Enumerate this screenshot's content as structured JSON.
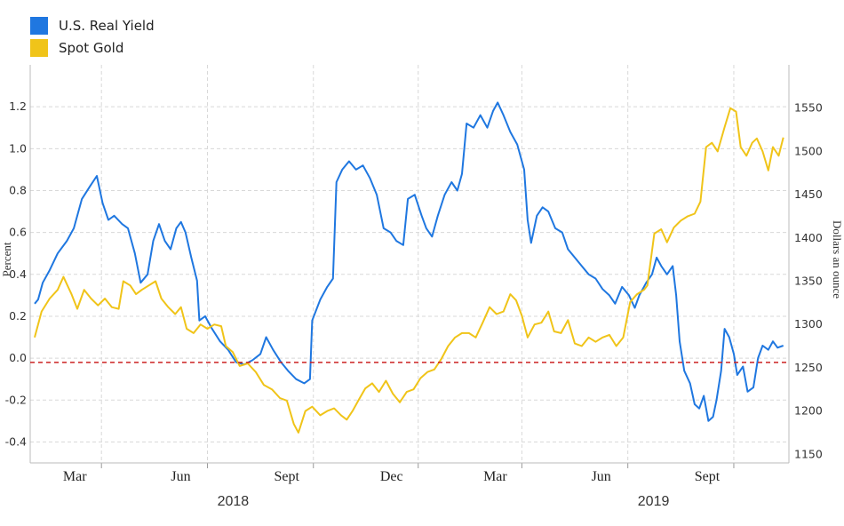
{
  "legend": {
    "items": [
      {
        "label": "U.S. Real Yield",
        "color": "#1f77e0"
      },
      {
        "label": "Spot Gold",
        "color": "#f0c419"
      }
    ]
  },
  "chart_data": {
    "type": "line",
    "left_axis": {
      "label": "Percent",
      "min": -0.5,
      "max": 1.4,
      "ticks": [
        "1.2",
        "1.0",
        "0.8",
        "0.6",
        "0.4",
        "0.2",
        "0.0",
        "-0.2",
        "-0.4"
      ]
    },
    "right_axis": {
      "label": "Dollars an ounce",
      "min": 1140,
      "max": 1600,
      "ticks": [
        "1550",
        "1500",
        "1450",
        "1400",
        "1350",
        "1300",
        "1250",
        "1200",
        "1150"
      ]
    },
    "x_axis": {
      "start": "2018-01-02",
      "end": "2019-10-15",
      "month_labels": [
        {
          "date": "2018-03-01",
          "label": "Mar"
        },
        {
          "date": "2018-06-01",
          "label": "Jun"
        },
        {
          "date": "2018-09-01",
          "label": "Sept"
        },
        {
          "date": "2018-12-01",
          "label": "Dec"
        },
        {
          "date": "2019-03-01",
          "label": "Mar"
        },
        {
          "date": "2019-06-01",
          "label": "Jun"
        },
        {
          "date": "2019-09-01",
          "label": "Sept"
        }
      ],
      "year_labels": [
        {
          "date": "2018-07-01",
          "label": "2018"
        },
        {
          "date": "2019-07-01",
          "label": "2019"
        }
      ]
    },
    "grid": true,
    "reference_line": {
      "value": -0.02,
      "axis": "left",
      "color": "#cc2222",
      "style": "dashed"
    },
    "series": [
      {
        "name": "U.S. Real Yield",
        "axis": "left",
        "color": "#1f77e0",
        "points": [
          [
            "2018-01-02",
            0.26
          ],
          [
            "2018-01-05",
            0.28
          ],
          [
            "2018-01-09",
            0.36
          ],
          [
            "2018-01-15",
            0.42
          ],
          [
            "2018-01-22",
            0.5
          ],
          [
            "2018-01-30",
            0.56
          ],
          [
            "2018-02-05",
            0.62
          ],
          [
            "2018-02-12",
            0.76
          ],
          [
            "2018-02-19",
            0.82
          ],
          [
            "2018-02-25",
            0.87
          ],
          [
            "2018-03-02",
            0.74
          ],
          [
            "2018-03-07",
            0.66
          ],
          [
            "2018-03-12",
            0.68
          ],
          [
            "2018-03-19",
            0.64
          ],
          [
            "2018-03-24",
            0.62
          ],
          [
            "2018-03-30",
            0.5
          ],
          [
            "2018-04-04",
            0.36
          ],
          [
            "2018-04-10",
            0.4
          ],
          [
            "2018-04-15",
            0.56
          ],
          [
            "2018-04-20",
            0.64
          ],
          [
            "2018-04-25",
            0.56
          ],
          [
            "2018-04-30",
            0.52
          ],
          [
            "2018-05-05",
            0.62
          ],
          [
            "2018-05-09",
            0.65
          ],
          [
            "2018-05-13",
            0.6
          ],
          [
            "2018-05-18",
            0.48
          ],
          [
            "2018-05-23",
            0.37
          ],
          [
            "2018-05-25",
            0.18
          ],
          [
            "2018-05-30",
            0.2
          ],
          [
            "2018-06-05",
            0.14
          ],
          [
            "2018-06-12",
            0.08
          ],
          [
            "2018-06-19",
            0.04
          ],
          [
            "2018-06-26",
            -0.02
          ],
          [
            "2018-07-03",
            -0.03
          ],
          [
            "2018-07-10",
            -0.01
          ],
          [
            "2018-07-17",
            0.02
          ],
          [
            "2018-07-22",
            0.1
          ],
          [
            "2018-07-28",
            0.04
          ],
          [
            "2018-08-04",
            -0.02
          ],
          [
            "2018-08-10",
            -0.06
          ],
          [
            "2018-08-17",
            -0.1
          ],
          [
            "2018-08-24",
            -0.12
          ],
          [
            "2018-08-29",
            -0.1
          ],
          [
            "2018-08-31",
            0.18
          ],
          [
            "2018-09-07",
            0.28
          ],
          [
            "2018-09-13",
            0.34
          ],
          [
            "2018-09-18",
            0.38
          ],
          [
            "2018-09-21",
            0.84
          ],
          [
            "2018-09-26",
            0.9
          ],
          [
            "2018-10-02",
            0.94
          ],
          [
            "2018-10-08",
            0.9
          ],
          [
            "2018-10-14",
            0.92
          ],
          [
            "2018-10-20",
            0.86
          ],
          [
            "2018-10-26",
            0.78
          ],
          [
            "2018-11-01",
            0.62
          ],
          [
            "2018-11-07",
            0.6
          ],
          [
            "2018-11-12",
            0.56
          ],
          [
            "2018-11-18",
            0.54
          ],
          [
            "2018-11-22",
            0.76
          ],
          [
            "2018-11-28",
            0.78
          ],
          [
            "2018-12-04",
            0.68
          ],
          [
            "2018-12-08",
            0.62
          ],
          [
            "2018-12-13",
            0.58
          ],
          [
            "2018-12-18",
            0.68
          ],
          [
            "2018-12-24",
            0.78
          ],
          [
            "2018-12-30",
            0.84
          ],
          [
            "2019-01-04",
            0.8
          ],
          [
            "2019-01-08",
            0.88
          ],
          [
            "2019-01-12",
            1.12
          ],
          [
            "2019-01-18",
            1.1
          ],
          [
            "2019-01-24",
            1.16
          ],
          [
            "2019-01-30",
            1.1
          ],
          [
            "2019-02-04",
            1.18
          ],
          [
            "2019-02-08",
            1.22
          ],
          [
            "2019-02-13",
            1.16
          ],
          [
            "2019-02-19",
            1.08
          ],
          [
            "2019-02-25",
            1.02
          ],
          [
            "2019-03-03",
            0.9
          ],
          [
            "2019-03-06",
            0.66
          ],
          [
            "2019-03-09",
            0.55
          ],
          [
            "2019-03-14",
            0.68
          ],
          [
            "2019-03-19",
            0.72
          ],
          [
            "2019-03-24",
            0.7
          ],
          [
            "2019-03-30",
            0.62
          ],
          [
            "2019-04-05",
            0.6
          ],
          [
            "2019-04-10",
            0.52
          ],
          [
            "2019-04-16",
            0.48
          ],
          [
            "2019-04-22",
            0.44
          ],
          [
            "2019-04-28",
            0.4
          ],
          [
            "2019-05-04",
            0.38
          ],
          [
            "2019-05-10",
            0.33
          ],
          [
            "2019-05-16",
            0.3
          ],
          [
            "2019-05-21",
            0.26
          ],
          [
            "2019-05-27",
            0.34
          ],
          [
            "2019-06-02",
            0.3
          ],
          [
            "2019-06-07",
            0.24
          ],
          [
            "2019-06-11",
            0.3
          ],
          [
            "2019-06-17",
            0.36
          ],
          [
            "2019-06-22",
            0.4
          ],
          [
            "2019-06-26",
            0.48
          ],
          [
            "2019-06-30",
            0.44
          ],
          [
            "2019-07-05",
            0.4
          ],
          [
            "2019-07-10",
            0.44
          ],
          [
            "2019-07-13",
            0.3
          ],
          [
            "2019-07-16",
            0.08
          ],
          [
            "2019-07-20",
            -0.06
          ],
          [
            "2019-07-25",
            -0.12
          ],
          [
            "2019-07-29",
            -0.22
          ],
          [
            "2019-08-02",
            -0.24
          ],
          [
            "2019-08-06",
            -0.18
          ],
          [
            "2019-08-10",
            -0.3
          ],
          [
            "2019-08-14",
            -0.28
          ],
          [
            "2019-08-17",
            -0.2
          ],
          [
            "2019-08-21",
            -0.06
          ],
          [
            "2019-08-24",
            0.14
          ],
          [
            "2019-08-28",
            0.1
          ],
          [
            "2019-09-01",
            0.02
          ],
          [
            "2019-09-04",
            -0.08
          ],
          [
            "2019-09-09",
            -0.04
          ],
          [
            "2019-09-13",
            -0.16
          ],
          [
            "2019-09-18",
            -0.14
          ],
          [
            "2019-09-22",
            0.0
          ],
          [
            "2019-09-26",
            0.06
          ],
          [
            "2019-10-01",
            0.04
          ],
          [
            "2019-10-05",
            0.08
          ],
          [
            "2019-10-09",
            0.05
          ],
          [
            "2019-10-14",
            0.06
          ]
        ]
      },
      {
        "name": "Spot Gold",
        "axis": "right",
        "color": "#f0c419",
        "points": [
          [
            "2018-01-02",
            1285
          ],
          [
            "2018-01-08",
            1315
          ],
          [
            "2018-01-15",
            1330
          ],
          [
            "2018-01-22",
            1340
          ],
          [
            "2018-01-27",
            1355
          ],
          [
            "2018-02-03",
            1335
          ],
          [
            "2018-02-08",
            1318
          ],
          [
            "2018-02-14",
            1340
          ],
          [
            "2018-02-20",
            1330
          ],
          [
            "2018-02-26",
            1322
          ],
          [
            "2018-03-04",
            1330
          ],
          [
            "2018-03-10",
            1320
          ],
          [
            "2018-03-16",
            1318
          ],
          [
            "2018-03-20",
            1350
          ],
          [
            "2018-03-26",
            1345
          ],
          [
            "2018-03-31",
            1335
          ],
          [
            "2018-04-05",
            1340
          ],
          [
            "2018-04-11",
            1345
          ],
          [
            "2018-04-17",
            1350
          ],
          [
            "2018-04-22",
            1330
          ],
          [
            "2018-04-28",
            1320
          ],
          [
            "2018-05-04",
            1312
          ],
          [
            "2018-05-09",
            1320
          ],
          [
            "2018-05-14",
            1295
          ],
          [
            "2018-05-20",
            1290
          ],
          [
            "2018-05-26",
            1300
          ],
          [
            "2018-06-01",
            1295
          ],
          [
            "2018-06-07",
            1300
          ],
          [
            "2018-06-13",
            1298
          ],
          [
            "2018-06-17",
            1275
          ],
          [
            "2018-06-23",
            1268
          ],
          [
            "2018-06-29",
            1252
          ],
          [
            "2018-07-06",
            1255
          ],
          [
            "2018-07-13",
            1245
          ],
          [
            "2018-07-20",
            1230
          ],
          [
            "2018-07-27",
            1225
          ],
          [
            "2018-08-03",
            1215
          ],
          [
            "2018-08-09",
            1212
          ],
          [
            "2018-08-15",
            1185
          ],
          [
            "2018-08-19",
            1175
          ],
          [
            "2018-08-25",
            1200
          ],
          [
            "2018-08-31",
            1205
          ],
          [
            "2018-09-07",
            1195
          ],
          [
            "2018-09-13",
            1200
          ],
          [
            "2018-09-19",
            1203
          ],
          [
            "2018-09-25",
            1195
          ],
          [
            "2018-09-30",
            1190
          ],
          [
            "2018-10-05",
            1200
          ],
          [
            "2018-10-10",
            1212
          ],
          [
            "2018-10-16",
            1226
          ],
          [
            "2018-10-22",
            1232
          ],
          [
            "2018-10-28",
            1222
          ],
          [
            "2018-11-03",
            1235
          ],
          [
            "2018-11-09",
            1220
          ],
          [
            "2018-11-15",
            1210
          ],
          [
            "2018-11-21",
            1222
          ],
          [
            "2018-11-27",
            1225
          ],
          [
            "2018-12-03",
            1238
          ],
          [
            "2018-12-09",
            1245
          ],
          [
            "2018-12-15",
            1248
          ],
          [
            "2018-12-21",
            1260
          ],
          [
            "2018-12-27",
            1275
          ],
          [
            "2019-01-02",
            1285
          ],
          [
            "2019-01-08",
            1290
          ],
          [
            "2019-01-14",
            1290
          ],
          [
            "2019-01-20",
            1285
          ],
          [
            "2019-01-26",
            1302
          ],
          [
            "2019-02-01",
            1320
          ],
          [
            "2019-02-07",
            1312
          ],
          [
            "2019-02-13",
            1315
          ],
          [
            "2019-02-19",
            1335
          ],
          [
            "2019-02-24",
            1328
          ],
          [
            "2019-03-01",
            1310
          ],
          [
            "2019-03-06",
            1285
          ],
          [
            "2019-03-12",
            1300
          ],
          [
            "2019-03-18",
            1302
          ],
          [
            "2019-03-24",
            1315
          ],
          [
            "2019-03-29",
            1292
          ],
          [
            "2019-04-04",
            1290
          ],
          [
            "2019-04-10",
            1305
          ],
          [
            "2019-04-16",
            1278
          ],
          [
            "2019-04-22",
            1275
          ],
          [
            "2019-04-28",
            1285
          ],
          [
            "2019-05-04",
            1280
          ],
          [
            "2019-05-10",
            1285
          ],
          [
            "2019-05-16",
            1288
          ],
          [
            "2019-05-22",
            1275
          ],
          [
            "2019-05-28",
            1285
          ],
          [
            "2019-06-03",
            1326
          ],
          [
            "2019-06-09",
            1335
          ],
          [
            "2019-06-15",
            1340
          ],
          [
            "2019-06-18",
            1345
          ],
          [
            "2019-06-24",
            1405
          ],
          [
            "2019-06-30",
            1410
          ],
          [
            "2019-07-05",
            1395
          ],
          [
            "2019-07-11",
            1412
          ],
          [
            "2019-07-17",
            1420
          ],
          [
            "2019-07-23",
            1425
          ],
          [
            "2019-07-29",
            1428
          ],
          [
            "2019-08-03",
            1442
          ],
          [
            "2019-08-08",
            1505
          ],
          [
            "2019-08-13",
            1510
          ],
          [
            "2019-08-18",
            1500
          ],
          [
            "2019-08-24",
            1528
          ],
          [
            "2019-08-29",
            1550
          ],
          [
            "2019-09-03",
            1546
          ],
          [
            "2019-09-07",
            1505
          ],
          [
            "2019-09-12",
            1495
          ],
          [
            "2019-09-17",
            1510
          ],
          [
            "2019-09-21",
            1515
          ],
          [
            "2019-09-26",
            1500
          ],
          [
            "2019-10-01",
            1478
          ],
          [
            "2019-10-05",
            1505
          ],
          [
            "2019-10-10",
            1495
          ],
          [
            "2019-10-14",
            1516
          ]
        ]
      }
    ]
  }
}
